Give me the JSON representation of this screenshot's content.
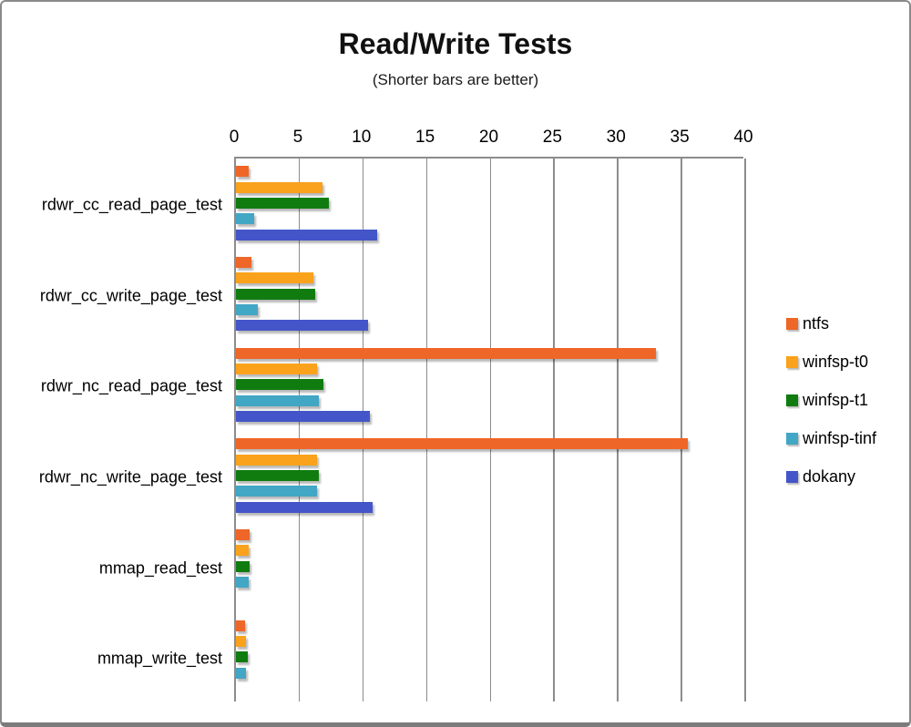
{
  "chart_data": {
    "type": "bar",
    "orientation": "horizontal",
    "title": "Read/Write Tests",
    "subtitle": "(Shorter bars are better)",
    "value_axis": {
      "position": "top",
      "min": 0,
      "max": 40,
      "tick_interval": 5,
      "ticks": [
        0,
        5,
        10,
        15,
        20,
        25,
        30,
        35,
        40
      ]
    },
    "grid": true,
    "legend_position": "right",
    "categories": [
      "rdwr_cc_read_page_test",
      "rdwr_cc_write_page_test",
      "rdwr_nc_read_page_test",
      "rdwr_nc_write_page_test",
      "mmap_read_test",
      "mmap_write_test"
    ],
    "series": [
      {
        "name": "ntfs",
        "color": "#EE6628",
        "values": [
          1.0,
          1.2,
          33.0,
          35.5,
          1.1,
          0.7
        ]
      },
      {
        "name": "winfsp-t0",
        "color": "#FAA21C",
        "values": [
          6.8,
          6.1,
          6.4,
          6.4,
          1.0,
          0.8
        ]
      },
      {
        "name": "winfsp-t1",
        "color": "#107C10",
        "values": [
          7.3,
          6.2,
          6.9,
          6.5,
          1.1,
          0.9
        ]
      },
      {
        "name": "winfsp-tinf",
        "color": "#42A6C5",
        "values": [
          1.4,
          1.7,
          6.5,
          6.4,
          1.0,
          0.8
        ]
      },
      {
        "name": "dokany",
        "color": "#4355C8",
        "values": [
          11.1,
          10.4,
          10.5,
          10.7,
          0,
          0
        ]
      }
    ],
    "colors": {
      "grid": "#8C8C8C",
      "text": "#000000",
      "background": "#FFFFFF"
    }
  }
}
